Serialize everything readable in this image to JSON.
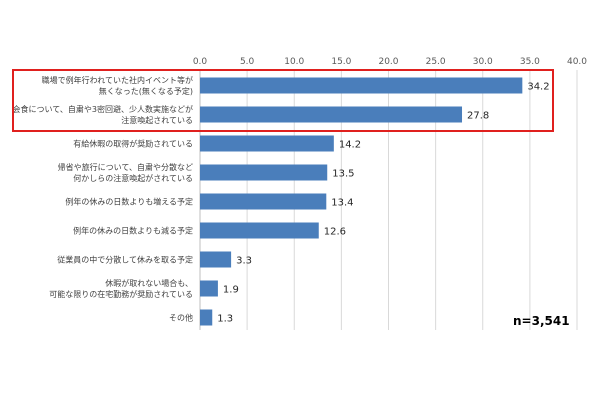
{
  "chart_data": {
    "type": "bar",
    "orientation": "horizontal",
    "xlim": [
      0,
      40
    ],
    "xticks": [
      "0.0",
      "5.0",
      "10.0",
      "15.0",
      "20.0",
      "25.0",
      "30.0",
      "35.0",
      "40.0"
    ],
    "grid": true,
    "categories": [
      [
        "職場で例年行われていた社内イベント等が",
        "無くなった(無くなる予定)"
      ],
      [
        "会食について、自粛や3密回避、少人数実施などが",
        "注意喚起されている"
      ],
      [
        "有給休暇の取得が奨励されている"
      ],
      [
        "帰省や旅行について、自粛や分散など",
        "何かしらの注意喚起がされている"
      ],
      [
        "例年の休みの日数よりも増える予定"
      ],
      [
        "例年の休みの日数よりも減る予定"
      ],
      [
        "従業員の中で分散して休みを取る予定"
      ],
      [
        "休暇が取れない場合も、",
        "可能な限りの在宅勤務が奨励されている"
      ],
      [
        "その他"
      ]
    ],
    "values": [
      34.2,
      27.8,
      14.2,
      13.5,
      13.4,
      12.6,
      3.3,
      1.9,
      1.3
    ],
    "value_labels": [
      "34.2",
      "27.8",
      "14.2",
      "13.5",
      "13.4",
      "12.6",
      "3.3",
      "1.9",
      "1.3"
    ],
    "highlighted": [
      0,
      1
    ],
    "annotation": "n=3,541"
  },
  "colors": {
    "bar": "#4a7ebb",
    "highlight_box": "#e0201e",
    "grid": "#d9d9d9"
  }
}
